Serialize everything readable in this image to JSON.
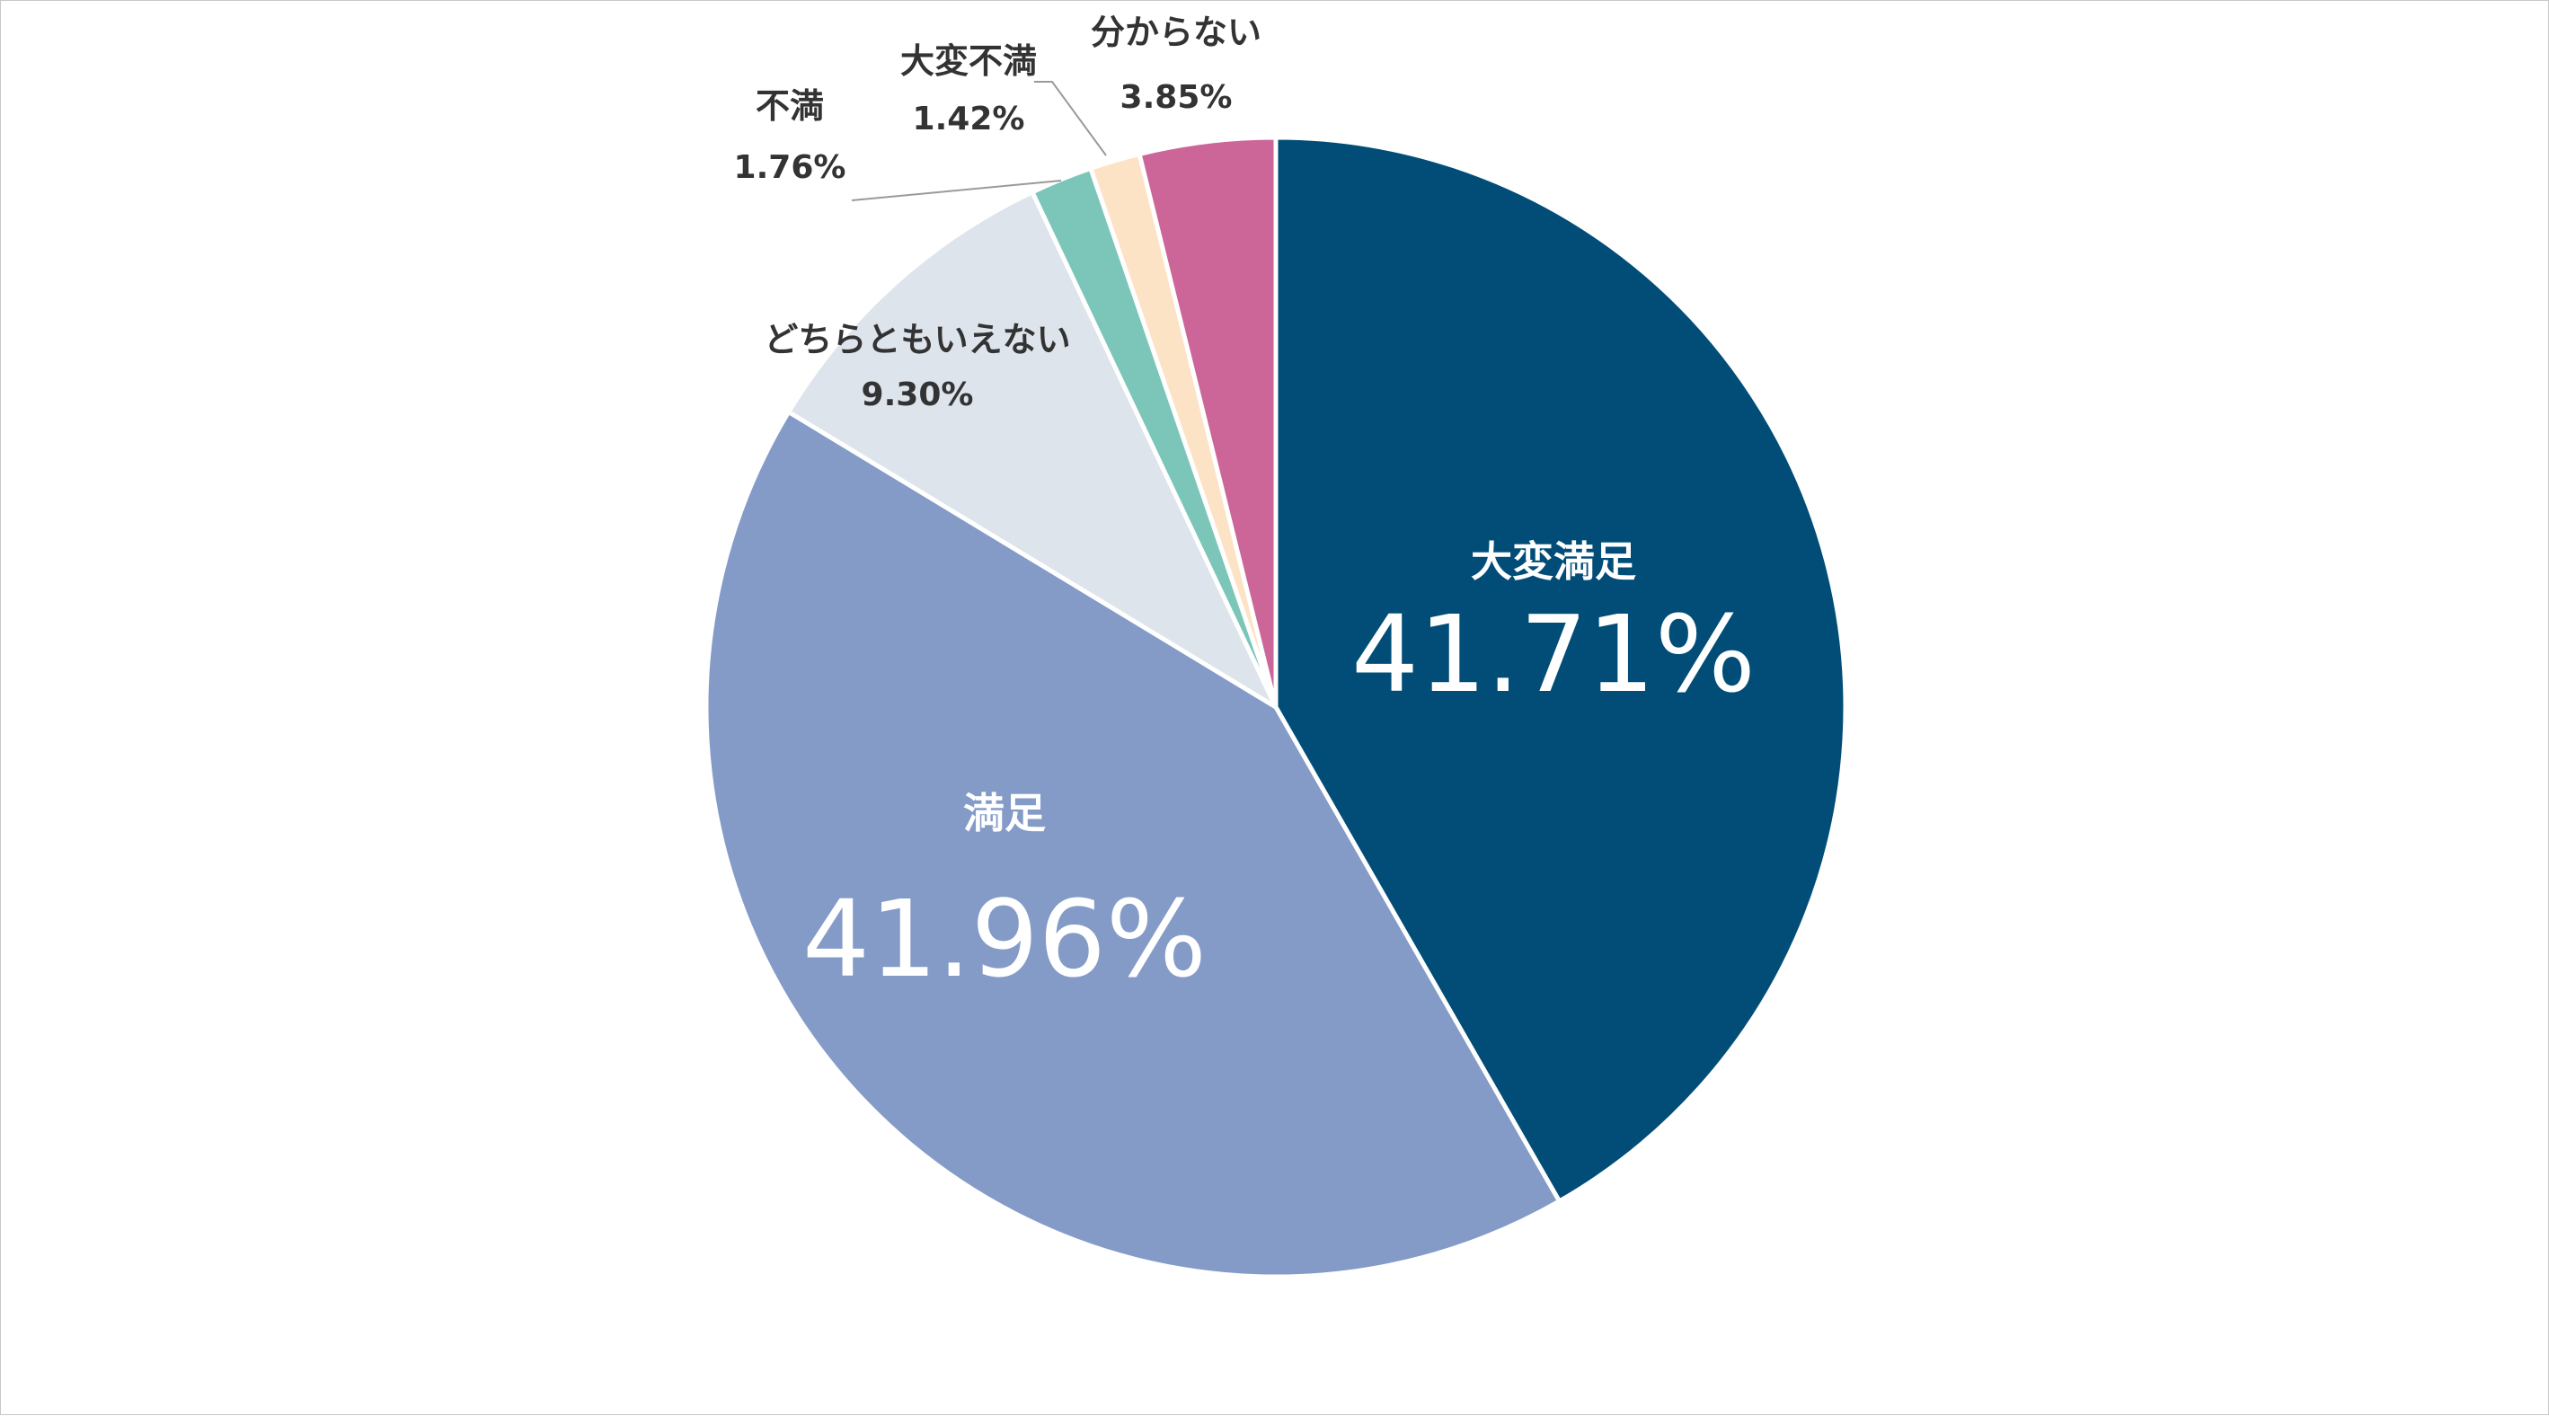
{
  "chart_data": {
    "type": "pie",
    "title": "",
    "start_angle_deg": 0,
    "direction": "clockwise",
    "slices": [
      {
        "label": "大変満足",
        "value": 41.71,
        "display": "41.71%",
        "color": "#014d78",
        "label_style": "inside"
      },
      {
        "label": "満足",
        "value": 41.96,
        "display": "41.96%",
        "color": "#849bc7",
        "label_style": "inside"
      },
      {
        "label": "どちらともいえない",
        "value": 9.3,
        "display": "9.30%",
        "color": "#dde4ec",
        "label_style": "outside"
      },
      {
        "label": "不満",
        "value": 1.76,
        "display": "1.76%",
        "color": "#7cc5b9",
        "label_style": "outside"
      },
      {
        "label": "大変不満",
        "value": 1.42,
        "display": "1.42%",
        "color": "#fde3c6",
        "label_style": "outside"
      },
      {
        "label": "分からない",
        "value": 3.85,
        "display": "3.85%",
        "color": "#cc6699",
        "label_style": "outside"
      }
    ]
  }
}
